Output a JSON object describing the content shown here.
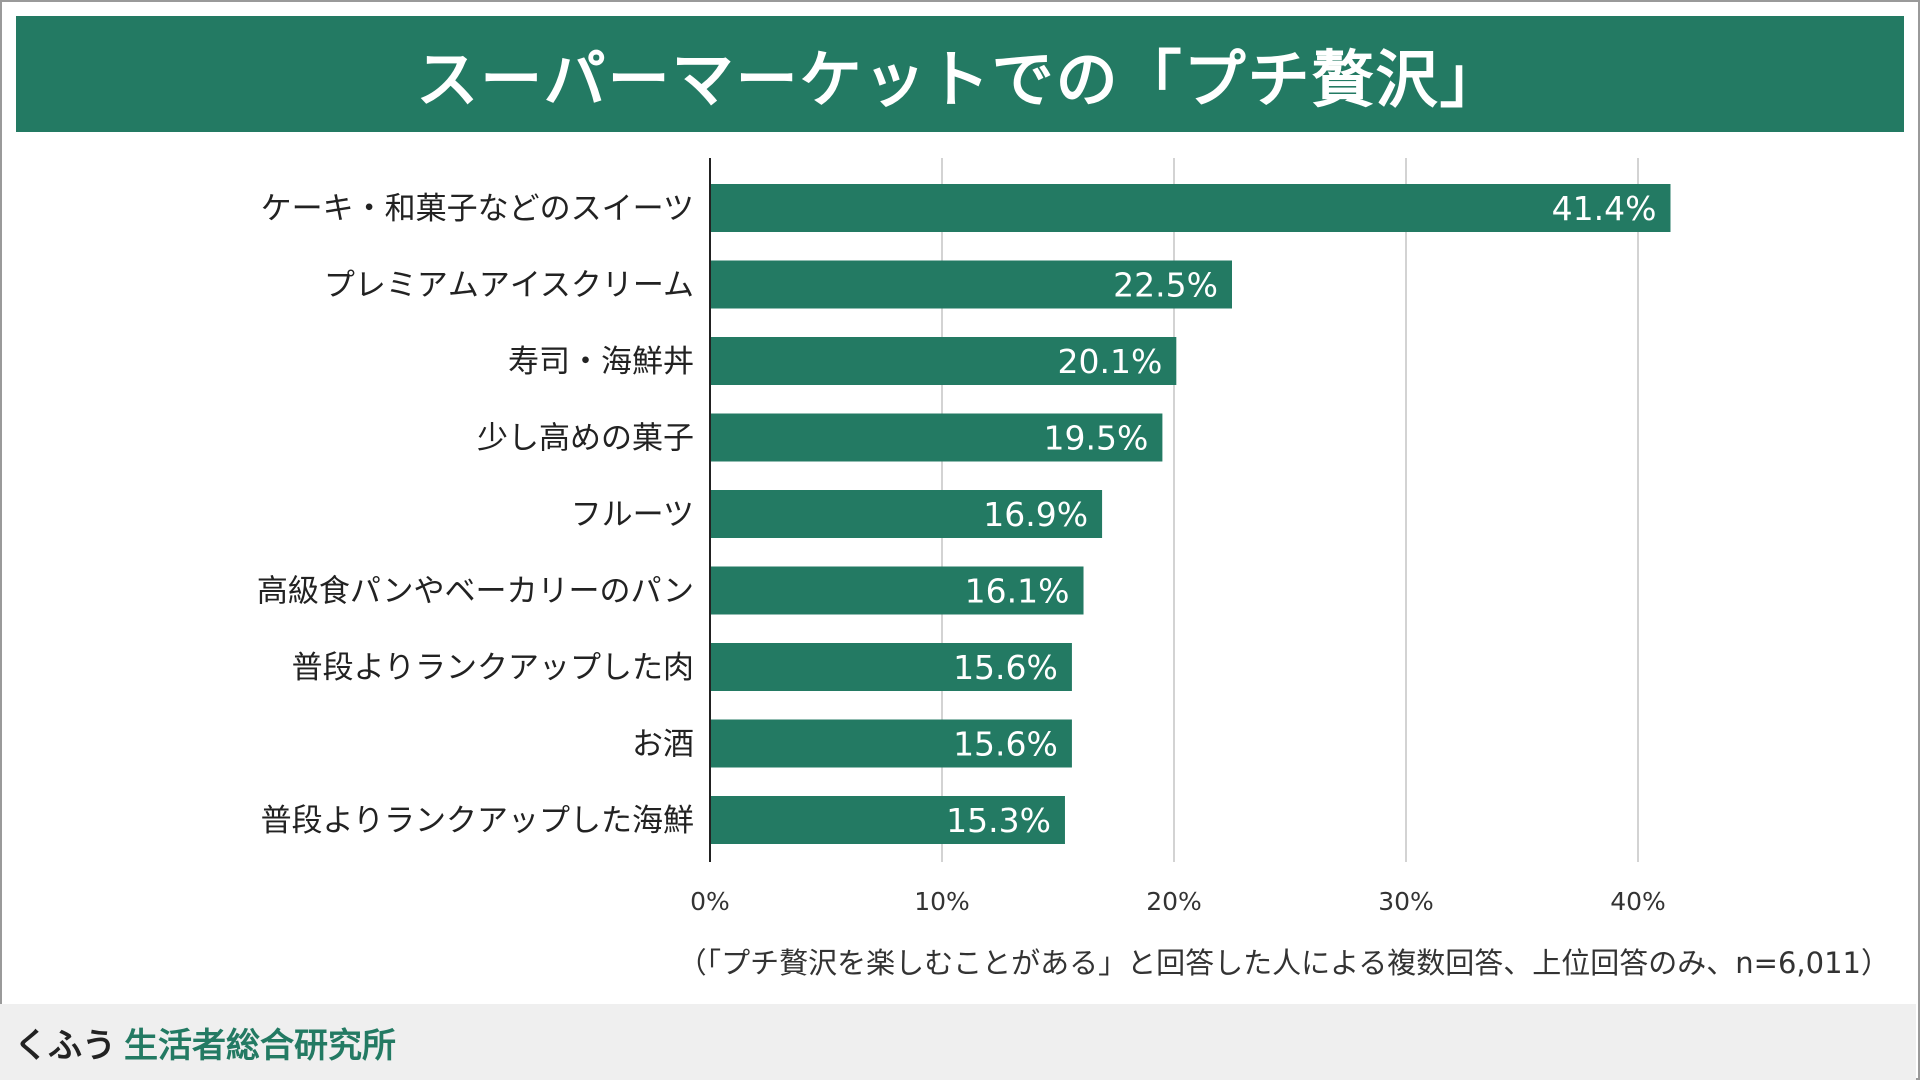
{
  "header": {
    "title": "スーパーマーケットでの「プチ贅沢」"
  },
  "chart_data": {
    "type": "bar",
    "orientation": "horizontal",
    "title": "スーパーマーケットでの「プチ贅沢」",
    "categories": [
      "ケーキ・和菓子などのスイーツ",
      "プレミアムアイスクリーム",
      "寿司・海鮮丼",
      "少し高めの菓子",
      "フルーツ",
      "高級食パンやベーカリーのパン",
      "普段よりランクアップした肉",
      "お酒",
      "普段よりランクアップした海鮮"
    ],
    "values": [
      41.4,
      22.5,
      20.1,
      19.5,
      16.9,
      16.1,
      15.6,
      15.6,
      15.3
    ],
    "value_labels": [
      "41.4%",
      "22.5%",
      "20.1%",
      "19.5%",
      "16.9%",
      "16.1%",
      "15.6%",
      "15.6%",
      "15.3%"
    ],
    "xlim": [
      0,
      40
    ],
    "xticks": [
      0,
      10,
      20,
      30,
      40
    ],
    "xtick_labels": [
      "0%",
      "10%",
      "20%",
      "30%",
      "40%"
    ],
    "xlabel": "",
    "ylabel": "",
    "grid": true,
    "bar_color": "#237a63",
    "label_color": "#ffffff"
  },
  "footnote": "（「プチ贅沢を楽しむことがある」と回答した人による複数回答、上位回答のみ、n=6,011）",
  "footer": {
    "brand_name": "くふう",
    "brand_sub": "生活者総合研究所"
  },
  "colors": {
    "accent": "#237a63",
    "grid": "#d3d3d3",
    "axis": "#222222",
    "footer_bg": "#efefef"
  }
}
